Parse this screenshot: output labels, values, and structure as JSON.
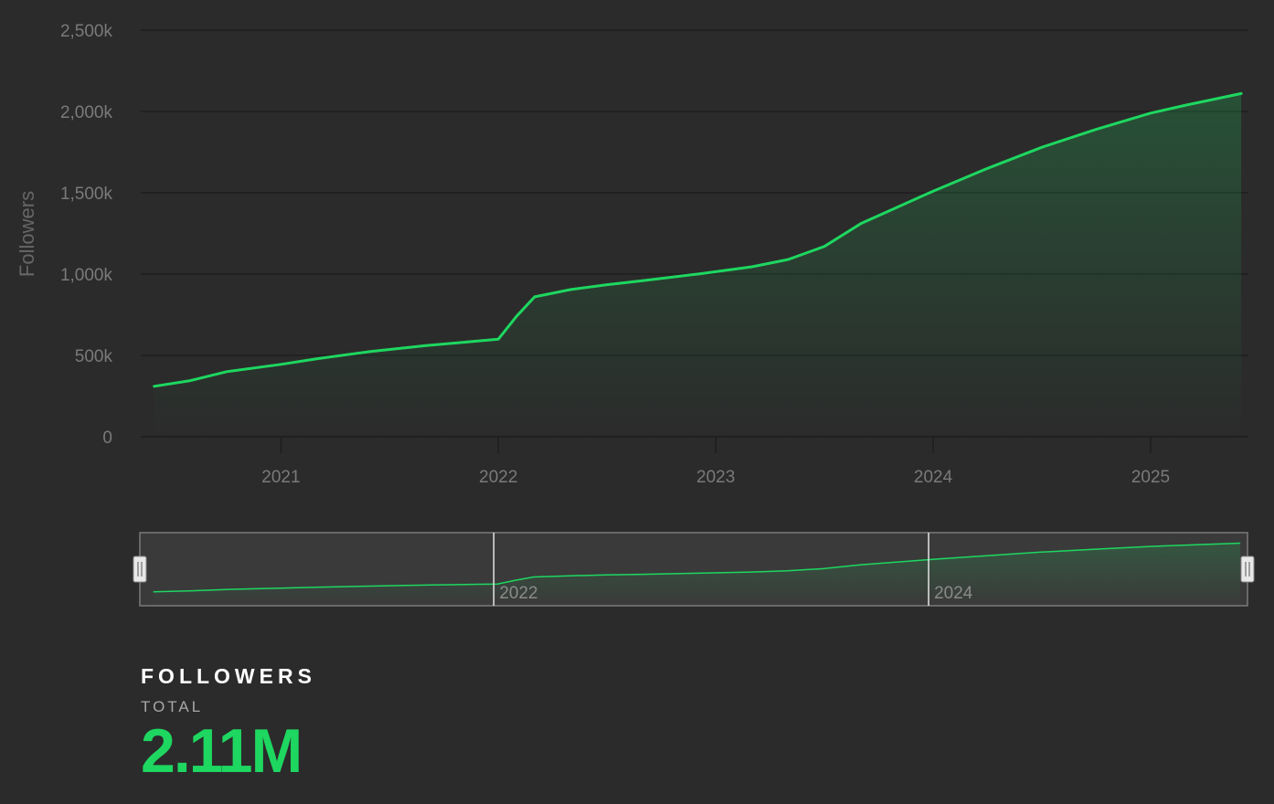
{
  "chart_data": {
    "type": "area",
    "ylabel": "Followers",
    "xlabel": "",
    "title": "",
    "ylim": [
      0,
      2500
    ],
    "y_ticks": [
      "0",
      "500k",
      "1,000k",
      "1,500k",
      "2,000k",
      "2,500k"
    ],
    "x_ticks": [
      "2021",
      "2022",
      "2023",
      "2024",
      "2025"
    ],
    "grid": true,
    "legend": "none",
    "series": [
      {
        "values_unit": "thousands",
        "x": [
          "2020-06",
          "2020-08",
          "2020-10",
          "2021-01",
          "2021-03",
          "2021-06",
          "2021-09",
          "2021-12",
          "2022-01",
          "2022-02",
          "2022-03",
          "2022-05",
          "2022-07",
          "2022-09",
          "2022-12",
          "2023-03",
          "2023-05",
          "2023-07",
          "2023-09",
          "2023-11",
          "2024-01",
          "2024-04",
          "2024-07",
          "2024-10",
          "2025-01",
          "2025-03",
          "2025-06"
        ],
        "y": [
          310,
          345,
          400,
          445,
          480,
          525,
          560,
          590,
          600,
          740,
          860,
          905,
          935,
          960,
          1000,
          1045,
          1090,
          1170,
          1310,
          1410,
          1510,
          1650,
          1780,
          1890,
          1990,
          2040,
          2110
        ]
      }
    ]
  },
  "navigator": {
    "labels": [
      "2022",
      "2024"
    ]
  },
  "colors": {
    "line": "#1ed760",
    "background": "#2b2b2b",
    "grid": "#1e1e1e",
    "tick_text": "#7a7a7a",
    "navigator_bg": "#3a3a3a"
  },
  "stats": {
    "title": "FOLLOWERS",
    "subtitle": "TOTAL",
    "value": "2.11M"
  }
}
